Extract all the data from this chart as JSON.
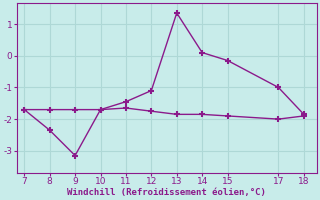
{
  "line1_x": [
    7,
    8,
    9,
    10,
    11,
    12,
    13,
    14,
    15,
    17,
    18
  ],
  "line1_y": [
    -1.7,
    -2.35,
    -3.15,
    -1.7,
    -1.45,
    -1.1,
    1.35,
    0.1,
    -0.15,
    -1.0,
    -1.85
  ],
  "line2_x": [
    7,
    8,
    9,
    10,
    11,
    12,
    13,
    14,
    15,
    17,
    18
  ],
  "line2_y": [
    -1.7,
    -1.7,
    -1.7,
    -1.7,
    -1.65,
    -1.75,
    -1.85,
    -1.85,
    -1.9,
    -2.0,
    -1.9
  ],
  "line_color": "#8b1a8b",
  "bg_color": "#c8ecea",
  "grid_color": "#aed8d6",
  "xlabel": "Windchill (Refroidissement éolien,°C)",
  "xlabel_color": "#8b1a8b",
  "tick_color": "#8b1a8b",
  "spine_color": "#8b1a8b",
  "xlim": [
    6.7,
    18.5
  ],
  "ylim": [
    -3.7,
    1.65
  ],
  "yticks": [
    -3,
    -2,
    -1,
    0,
    1
  ],
  "xticks": [
    7,
    8,
    9,
    10,
    11,
    12,
    13,
    14,
    15,
    17,
    18
  ],
  "marker": "+",
  "markersize": 5,
  "markeredgewidth": 1.5,
  "linewidth": 1.0
}
